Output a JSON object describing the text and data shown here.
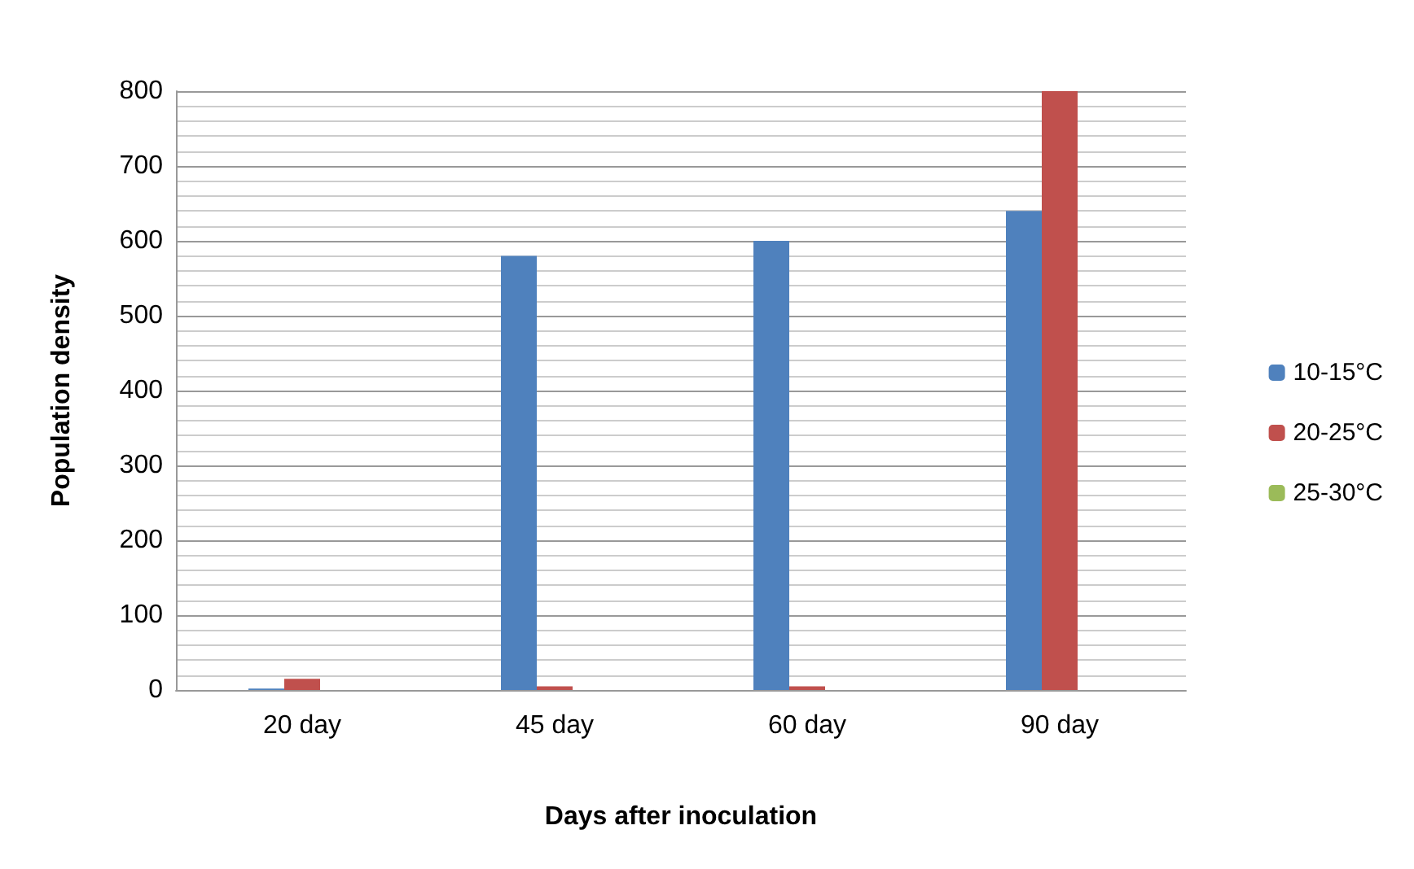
{
  "chart_data": {
    "type": "bar",
    "xlabel": "Days after inoculation",
    "ylabel": "Population density",
    "categories": [
      "20 day",
      "45 day",
      "60 day",
      "90 day"
    ],
    "series": [
      {
        "name": "10-15°C",
        "color": "#4f81bd",
        "values": [
          2,
          580,
          600,
          640
        ]
      },
      {
        "name": "20-25°C",
        "color": "#c0504d",
        "values": [
          15,
          5,
          5,
          800
        ]
      },
      {
        "name": "25-30°C",
        "color": "#9bbb59",
        "values": [
          0,
          0,
          0,
          0
        ]
      }
    ],
    "ylim": [
      0,
      800
    ],
    "yticks": [
      0,
      100,
      200,
      300,
      400,
      500,
      600,
      700,
      800
    ],
    "grid": true,
    "legend": "right"
  }
}
